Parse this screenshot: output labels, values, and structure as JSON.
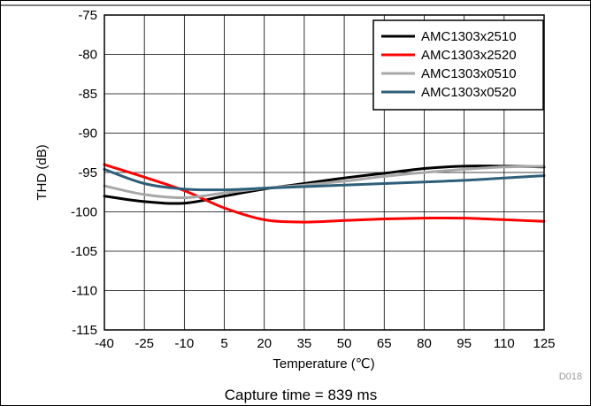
{
  "chart_data": {
    "type": "line",
    "xlabel": "Temperature (℃)",
    "ylabel": "THD (dB)",
    "xlim": [
      -40,
      125
    ],
    "ylim": [
      -115,
      -75
    ],
    "x_ticks": [
      "-40",
      "-25",
      "-10",
      "5",
      "20",
      "35",
      "50",
      "65",
      "80",
      "95",
      "110",
      "125"
    ],
    "y_ticks": [
      "-75",
      "-80",
      "-85",
      "-90",
      "-95",
      "-100",
      "-105",
      "-110",
      "-115"
    ],
    "grid": true,
    "legend_position": "top-right",
    "series": [
      {
        "name": "AMC1303x2510",
        "color": "#000000",
        "x": [
          -40,
          -25,
          -10,
          5,
          20,
          35,
          50,
          65,
          80,
          95,
          110,
          125
        ],
        "y": [
          -98.0,
          -98.7,
          -98.9,
          -98.0,
          -97.1,
          -96.4,
          -95.7,
          -95.1,
          -94.5,
          -94.2,
          -94.2,
          -94.3
        ]
      },
      {
        "name": "AMC1303x2520",
        "color": "#ff0000",
        "x": [
          -40,
          -25,
          -10,
          5,
          20,
          35,
          50,
          65,
          80,
          95,
          110,
          125
        ],
        "y": [
          -94.0,
          -95.6,
          -97.3,
          -99.5,
          -101.0,
          -101.3,
          -101.1,
          -100.9,
          -100.8,
          -100.8,
          -101.0,
          -101.2
        ]
      },
      {
        "name": "AMC1303x0510",
        "color": "#a8a8a8",
        "x": [
          -40,
          -25,
          -10,
          5,
          20,
          35,
          50,
          65,
          80,
          95,
          110,
          125
        ],
        "y": [
          -96.7,
          -97.8,
          -98.2,
          -97.6,
          -97.0,
          -96.6,
          -96.1,
          -95.5,
          -95.0,
          -94.6,
          -94.3,
          -94.2
        ]
      },
      {
        "name": "AMC1303x0520",
        "color": "#2e5f7a",
        "x": [
          -40,
          -25,
          -10,
          5,
          20,
          35,
          50,
          65,
          80,
          95,
          110,
          125
        ],
        "y": [
          -94.6,
          -96.4,
          -97.1,
          -97.2,
          -97.0,
          -96.8,
          -96.6,
          -96.4,
          -96.2,
          -96.0,
          -95.7,
          -95.4
        ]
      }
    ]
  },
  "figure_id": "D018",
  "caption": "Capture time = 839 ms"
}
